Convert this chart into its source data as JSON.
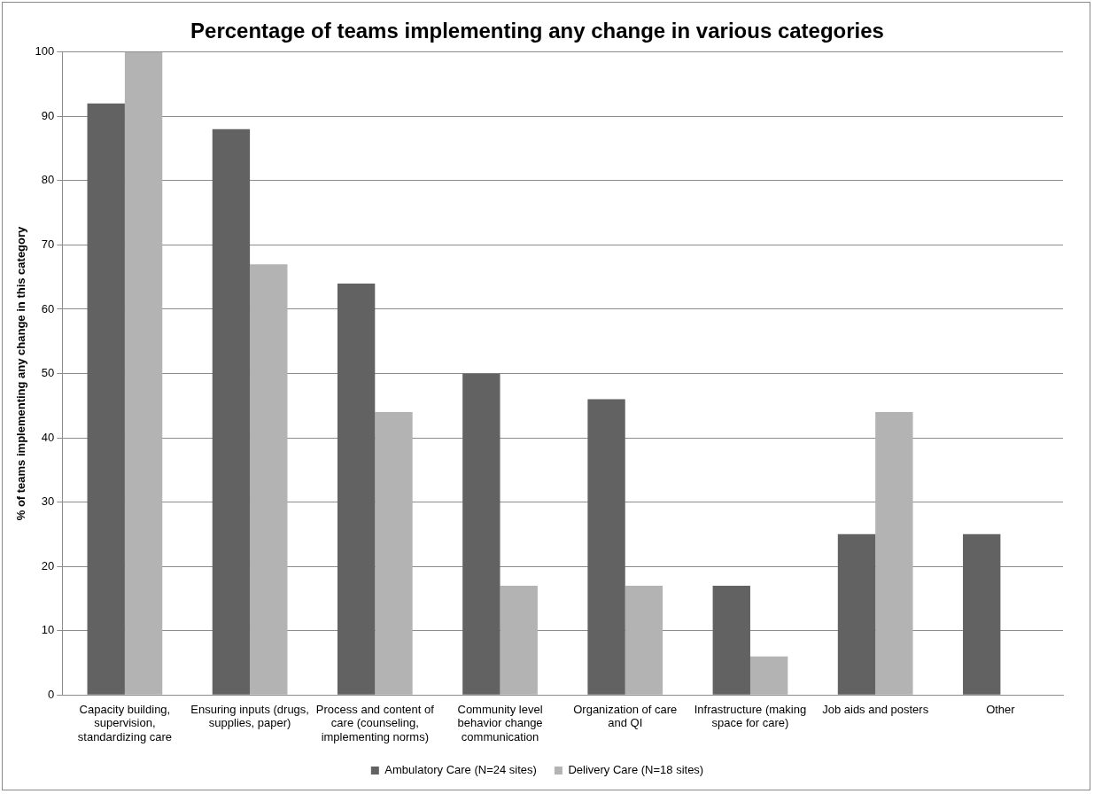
{
  "chart_data": {
    "type": "bar",
    "title": "Percentage of teams implementing any change in various categories",
    "ylabel": "% of teams implementing any change in this category",
    "categories": [
      "Capacity building, supervision, standardizing care",
      "Ensuring inputs (drugs, supplies, paper)",
      "Process and content of care (counseling, implementing norms)",
      "Community level behavior change communication",
      "Organization of care and QI",
      "Infrastructure (making space for care)",
      "Job aids and posters",
      "Other"
    ],
    "series": [
      {
        "name": "Ambulatory Care (N=24 sites)",
        "color": "#626262",
        "values": [
          92,
          88,
          64,
          50,
          46,
          17,
          25,
          25
        ]
      },
      {
        "name": "Delivery Care (N=18 sites)",
        "color": "#b3b3b3",
        "values": [
          100,
          67,
          44,
          17,
          17,
          6,
          44,
          0
        ]
      }
    ],
    "ylim": [
      0,
      100
    ],
    "yticks": [
      0,
      10,
      20,
      30,
      40,
      50,
      60,
      70,
      80,
      90,
      100
    ],
    "grid": "y",
    "legend": "bottom"
  }
}
